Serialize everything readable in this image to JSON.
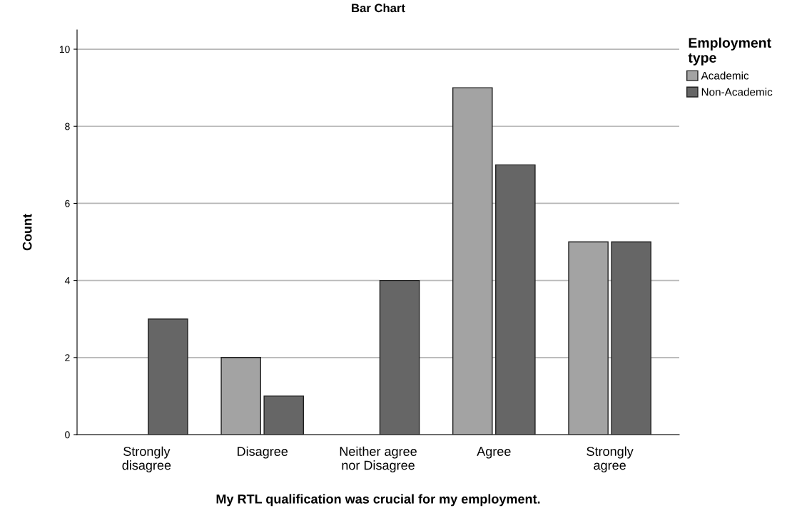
{
  "chart_data": {
    "type": "bar",
    "title": "Bar Chart",
    "xlabel": "My RTL qualification was crucial for my employment.",
    "ylabel": "Count",
    "legend_title": "Employment\ntype",
    "categories": [
      "Strongly\ndisagree",
      "Disagree",
      "Neither agree\nnor Disagree",
      "Agree",
      "Strongly\nagree"
    ],
    "series": [
      {
        "name": "Academic",
        "color": "#a3a3a3",
        "values": [
          null,
          2,
          null,
          9,
          5
        ]
      },
      {
        "name": "Non-Academic",
        "color": "#666666",
        "values": [
          3,
          1,
          4,
          7,
          5
        ]
      }
    ],
    "ylim": [
      0,
      10.5
    ],
    "yticks": [
      0,
      2,
      4,
      6,
      8,
      10
    ],
    "grid": "y",
    "legend": "top right"
  }
}
